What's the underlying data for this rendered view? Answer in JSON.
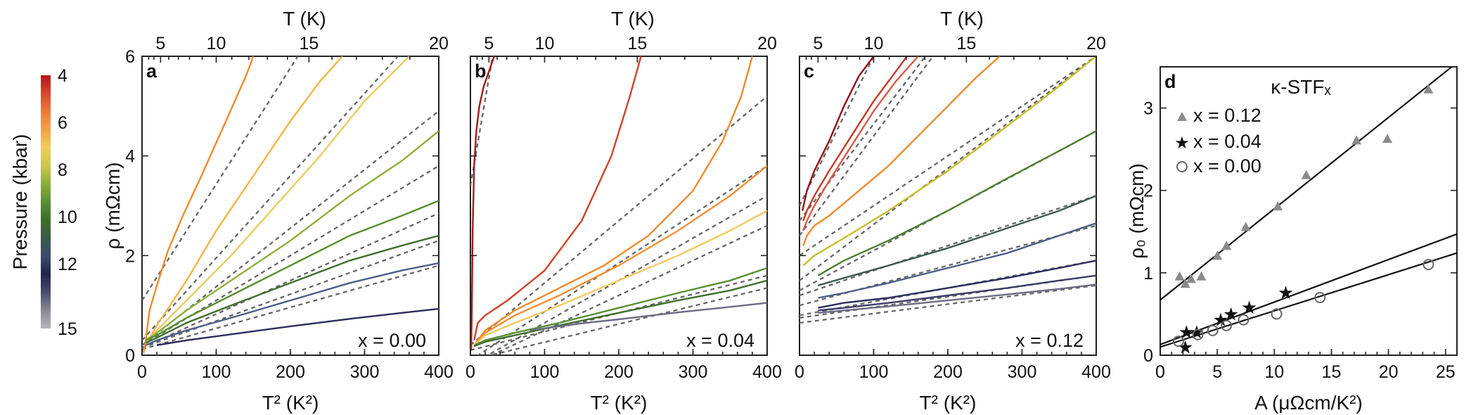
{
  "figure": {
    "colorbar": {
      "label": "Pressure (kbar)",
      "ticks": [
        "4",
        "6",
        "8",
        "10",
        "12",
        "15"
      ],
      "colors": [
        "#b5161c",
        "#d9452a",
        "#ef7b3a",
        "#f1a246",
        "#f3c95c",
        "#c8c84a",
        "#8fae3c",
        "#5b8e33",
        "#3f6e2d",
        "#3a5a48",
        "#3d4a6c",
        "#23244e",
        "#4a4a6a",
        "#8a8a96",
        "#b5b5b8"
      ]
    }
  },
  "chart_data": [
    {
      "id": "a",
      "type": "line",
      "panel_label": "a",
      "annotation": "x = 0.00",
      "xlabel": "T² (K²)",
      "ylabel": "ρ (mΩcm)",
      "top_axis_label": "T (K)",
      "xlim": [
        0,
        400
      ],
      "ylim": [
        0,
        6
      ],
      "x_ticks": [
        "0",
        "100",
        "200",
        "300",
        "400"
      ],
      "y_ticks": [
        "0",
        "2",
        "4",
        "6"
      ],
      "top_ticks": [
        "5",
        "10",
        "15",
        "20"
      ],
      "series": [
        {
          "name": "4.0 kbar",
          "color": "#ef8a2c",
          "x": [
            2,
            5,
            10,
            20,
            35,
            55,
            80,
            110,
            140,
            150
          ],
          "y": [
            0.05,
            0.3,
            0.9,
            1.4,
            2.1,
            2.8,
            3.6,
            4.6,
            5.6,
            6.0
          ]
        },
        {
          "name": "6.5 kbar",
          "color": "#f2b545",
          "x": [
            5,
            20,
            60,
            100,
            150,
            200,
            240,
            270
          ],
          "y": [
            0.2,
            0.6,
            1.5,
            2.5,
            3.6,
            4.7,
            5.5,
            6.0
          ]
        },
        {
          "name": "7.5 kbar",
          "color": "#e9cc60",
          "x": [
            5,
            20,
            60,
            120,
            180,
            240,
            300,
            360
          ],
          "y": [
            0.25,
            0.5,
            1.1,
            2.0,
            3.0,
            4.0,
            5.1,
            6.0
          ]
        },
        {
          "name": "9 kbar",
          "color": "#8fae3c",
          "x": [
            5,
            20,
            60,
            120,
            200,
            280,
            350,
            400
          ],
          "y": [
            0.3,
            0.45,
            0.9,
            1.5,
            2.3,
            3.2,
            3.9,
            4.5
          ]
        },
        {
          "name": "10 kbar",
          "color": "#5b8e33",
          "x": [
            5,
            20,
            60,
            120,
            200,
            280,
            350,
            400
          ],
          "y": [
            0.3,
            0.4,
            0.75,
            1.2,
            1.8,
            2.4,
            2.8,
            3.1
          ]
        },
        {
          "name": "11 kbar",
          "color": "#3f6e2d",
          "x": [
            5,
            20,
            60,
            120,
            200,
            280,
            350,
            400
          ],
          "y": [
            0.25,
            0.35,
            0.65,
            1.0,
            1.45,
            1.9,
            2.2,
            2.4
          ]
        },
        {
          "name": "12 kbar",
          "color": "#4c5e86",
          "x": [
            5,
            20,
            60,
            120,
            200,
            280,
            350,
            400
          ],
          "y": [
            0.2,
            0.3,
            0.5,
            0.75,
            1.1,
            1.45,
            1.7,
            1.85
          ]
        },
        {
          "name": "13.5 kbar",
          "color": "#2b2d5c",
          "x": [
            20,
            60,
            120,
            200,
            280,
            350,
            400
          ],
          "y": [
            0.2,
            0.3,
            0.42,
            0.58,
            0.73,
            0.85,
            0.93
          ]
        }
      ],
      "fits": [
        {
          "x": [
            0,
            210
          ],
          "y": [
            1.1,
            6.0
          ]
        },
        {
          "x": [
            0,
            345
          ],
          "y": [
            0.3,
            6.0
          ]
        },
        {
          "x": [
            0,
            400
          ],
          "y": [
            0.2,
            4.9
          ]
        },
        {
          "x": [
            0,
            400
          ],
          "y": [
            0.2,
            3.8
          ]
        },
        {
          "x": [
            0,
            400
          ],
          "y": [
            0.15,
            2.85
          ]
        },
        {
          "x": [
            0,
            400
          ],
          "y": [
            0.15,
            2.3
          ]
        },
        {
          "x": [
            0,
            400
          ],
          "y": [
            0.12,
            1.8
          ]
        }
      ]
    },
    {
      "id": "b",
      "type": "line",
      "panel_label": "b",
      "annotation": "x = 0.04",
      "xlabel": "T² (K²)",
      "ylabel": "",
      "top_axis_label": "T (K)",
      "xlim": [
        0,
        400
      ],
      "ylim": [
        0,
        6
      ],
      "x_ticks": [
        "0",
        "100",
        "200",
        "300",
        "400"
      ],
      "y_ticks": [],
      "top_ticks": [
        "5",
        "10",
        "15",
        "20"
      ],
      "series": [
        {
          "name": "4.0 kbar",
          "color": "#a31a1a",
          "x": [
            1,
            2,
            3,
            5,
            8,
            12,
            18,
            25,
            32
          ],
          "y": [
            0.1,
            1.0,
            2.5,
            3.8,
            4.5,
            5.0,
            5.4,
            5.7,
            6.0
          ]
        },
        {
          "name": "5 kbar",
          "color": "#d14128",
          "x": [
            5,
            10,
            20,
            50,
            100,
            150,
            190,
            215,
            230
          ],
          "y": [
            0.3,
            0.65,
            0.8,
            1.1,
            1.7,
            2.7,
            4.0,
            5.2,
            6.0
          ]
        },
        {
          "name": "6.5 kbar",
          "color": "#ef8a2c",
          "x": [
            5,
            20,
            60,
            120,
            180,
            240,
            300,
            340,
            365,
            380
          ],
          "y": [
            0.2,
            0.5,
            0.9,
            1.35,
            1.8,
            2.4,
            3.3,
            4.3,
            5.2,
            6.0
          ]
        },
        {
          "name": "7.5 kbar",
          "color": "#f08f36",
          "x": [
            5,
            20,
            60,
            120,
            200,
            280,
            350,
            400
          ],
          "y": [
            0.2,
            0.45,
            0.8,
            1.2,
            1.8,
            2.5,
            3.2,
            3.8
          ]
        },
        {
          "name": "8.5 kbar",
          "color": "#f3c95c",
          "x": [
            5,
            20,
            60,
            120,
            200,
            280,
            350,
            400
          ],
          "y": [
            0.2,
            0.4,
            0.65,
            1.0,
            1.5,
            2.0,
            2.5,
            2.9
          ]
        },
        {
          "name": "10 kbar",
          "color": "#5b8e33",
          "x": [
            5,
            20,
            60,
            120,
            200,
            280,
            350,
            400
          ],
          "y": [
            0.2,
            0.3,
            0.45,
            0.65,
            0.95,
            1.25,
            1.5,
            1.75
          ]
        },
        {
          "name": "11 kbar",
          "color": "#3f6e2d",
          "x": [
            5,
            20,
            60,
            120,
            200,
            280,
            350,
            400
          ],
          "y": [
            0.18,
            0.27,
            0.4,
            0.6,
            0.85,
            1.1,
            1.3,
            1.5
          ]
        },
        {
          "name": "13.5 kbar",
          "color": "#6b6b85",
          "x": [
            80,
            150,
            200,
            280,
            350,
            400
          ],
          "y": [
            0.5,
            0.64,
            0.72,
            0.86,
            0.97,
            1.05
          ]
        }
      ],
      "fits": [
        {
          "x": [
            0,
            30
          ],
          "y": [
            3.4,
            6.0
          ]
        },
        {
          "x": [
            0,
            400
          ],
          "y": [
            0.2,
            5.2
          ]
        },
        {
          "x": [
            0,
            400
          ],
          "y": [
            -0.1,
            3.8
          ]
        },
        {
          "x": [
            0,
            400
          ],
          "y": [
            -0.2,
            3.2
          ]
        },
        {
          "x": [
            0,
            400
          ],
          "y": [
            -0.2,
            2.6
          ]
        },
        {
          "x": [
            0,
            400
          ],
          "y": [
            0.1,
            1.6
          ]
        },
        {
          "x": [
            0,
            400
          ],
          "y": [
            -0.1,
            1.35
          ]
        }
      ]
    },
    {
      "id": "c",
      "type": "line",
      "panel_label": "c",
      "annotation": "x = 0.12",
      "xlabel": "T² (K²)",
      "ylabel": "",
      "top_axis_label": "T (K)",
      "xlim": [
        0,
        400
      ],
      "ylim": [
        0,
        6
      ],
      "x_ticks": [
        "0",
        "100",
        "200",
        "300",
        "400"
      ],
      "y_ticks": [],
      "top_ticks": [
        "5",
        "10",
        "15",
        "20"
      ],
      "series": [
        {
          "name": "4.0 kbar",
          "color": "#8e1118",
          "x": [
            4,
            10,
            20,
            40,
            60,
            80,
            100
          ],
          "y": [
            2.9,
            3.3,
            3.7,
            4.3,
            5.0,
            5.6,
            6.0
          ]
        },
        {
          "name": "5 kbar",
          "color": "#c0392b",
          "x": [
            5,
            10,
            20,
            40,
            70,
            100,
            130,
            145
          ],
          "y": [
            2.7,
            2.9,
            3.2,
            3.7,
            4.4,
            5.1,
            5.7,
            6.0
          ]
        },
        {
          "name": "6 kbar",
          "color": "#d9584a",
          "x": [
            5,
            10,
            20,
            40,
            70,
            100,
            130,
            160
          ],
          "y": [
            2.5,
            2.7,
            3.0,
            3.5,
            4.2,
            4.9,
            5.5,
            6.0
          ]
        },
        {
          "name": "6.5 kbar",
          "color": "#ef8a2c",
          "x": [
            5,
            10,
            20,
            40,
            80,
            120,
            160,
            200,
            240,
            270
          ],
          "y": [
            2.2,
            2.4,
            2.6,
            2.8,
            3.3,
            3.8,
            4.4,
            5.0,
            5.6,
            6.0
          ]
        },
        {
          "name": "8 kbar",
          "color": "#c8c02a",
          "x": [
            5,
            20,
            60,
            120,
            200,
            280,
            350,
            400
          ],
          "y": [
            1.8,
            2.0,
            2.35,
            2.9,
            3.7,
            4.6,
            5.4,
            6.0
          ]
        },
        {
          "name": "9.5 kbar",
          "color": "#4f7c2e",
          "x": [
            25,
            60,
            120,
            200,
            280,
            350,
            400
          ],
          "y": [
            1.6,
            1.9,
            2.3,
            2.9,
            3.55,
            4.1,
            4.5
          ]
        },
        {
          "name": "11 kbar",
          "color": "#3e5a4e",
          "x": [
            25,
            60,
            120,
            200,
            280,
            350,
            400
          ],
          "y": [
            1.4,
            1.55,
            1.8,
            2.15,
            2.55,
            2.9,
            3.2
          ]
        },
        {
          "name": "12 kbar",
          "color": "#4c5e86",
          "x": [
            25,
            60,
            120,
            200,
            280,
            350,
            400
          ],
          "y": [
            1.15,
            1.25,
            1.45,
            1.75,
            2.05,
            2.4,
            2.65
          ]
        },
        {
          "name": "13 kbar",
          "color": "#2b2d5c",
          "x": [
            25,
            60,
            120,
            200,
            280,
            350,
            400
          ],
          "y": [
            0.95,
            1.05,
            1.15,
            1.35,
            1.55,
            1.75,
            1.9
          ]
        },
        {
          "name": "14 kbar",
          "color": "#3b3d68",
          "x": [
            25,
            60,
            120,
            200,
            280,
            350,
            400
          ],
          "y": [
            0.9,
            0.95,
            1.05,
            1.2,
            1.35,
            1.5,
            1.6
          ]
        },
        {
          "name": "15 kbar",
          "color": "#6b6b85",
          "x": [
            25,
            60,
            120,
            200,
            280,
            350,
            400
          ],
          "y": [
            0.85,
            0.9,
            0.98,
            1.1,
            1.22,
            1.33,
            1.42
          ]
        }
      ],
      "fits": [
        {
          "x": [
            0,
            100
          ],
          "y": [
            3.0,
            6.0
          ]
        },
        {
          "x": [
            0,
            170
          ],
          "y": [
            2.7,
            6.0
          ]
        },
        {
          "x": [
            0,
            180
          ],
          "y": [
            2.4,
            6.0
          ]
        },
        {
          "x": [
            0,
            400
          ],
          "y": [
            2.0,
            6.0
          ]
        },
        {
          "x": [
            0,
            400
          ],
          "y": [
            1.5,
            6.0
          ]
        },
        {
          "x": [
            0,
            400
          ],
          "y": [
            1.3,
            4.5
          ]
        },
        {
          "x": [
            0,
            400
          ],
          "y": [
            1.2,
            3.2
          ]
        },
        {
          "x": [
            0,
            400
          ],
          "y": [
            1.0,
            2.6
          ]
        },
        {
          "x": [
            0,
            400
          ],
          "y": [
            0.8,
            1.9
          ]
        },
        {
          "x": [
            0,
            400
          ],
          "y": [
            0.75,
            1.6
          ]
        },
        {
          "x": [
            0,
            400
          ],
          "y": [
            0.65,
            1.4
          ]
        }
      ]
    },
    {
      "id": "d",
      "type": "scatter",
      "panel_label": "d",
      "title": "κ-STFₓ",
      "xlabel": "A (μΩcm/K²)",
      "ylabel": "ρ₀ (mΩcm)",
      "xlim": [
        0,
        26
      ],
      "ylim": [
        0,
        3.5
      ],
      "x_ticks": [
        "0",
        "5",
        "10",
        "15",
        "20",
        "25"
      ],
      "y_ticks": [
        "0",
        "1",
        "2",
        "3"
      ],
      "legend": [
        "x = 0.12",
        "x = 0.04",
        "x = 0.00"
      ],
      "series": [
        {
          "name": "x = 0.12",
          "marker": "triangle",
          "color": "#8a8a8a",
          "x": [
            1.7,
            2.2,
            2.7,
            3.6,
            5.0,
            5.8,
            7.5,
            10.3,
            12.8,
            17.2,
            19.9,
            23.5
          ],
          "y": [
            0.95,
            0.86,
            0.92,
            0.95,
            1.2,
            1.32,
            1.55,
            1.8,
            2.18,
            2.6,
            2.62,
            3.22
          ]
        },
        {
          "name": "x = 0.04",
          "marker": "star",
          "color": "#111111",
          "x": [
            2.2,
            2.3,
            3.2,
            5.3,
            6.2,
            7.8,
            11.0
          ],
          "y": [
            0.1,
            0.28,
            0.28,
            0.43,
            0.5,
            0.58,
            0.76
          ]
        },
        {
          "name": "x = 0.00",
          "marker": "circle",
          "color": "#666666",
          "x": [
            1.6,
            3.3,
            4.6,
            5.8,
            7.3,
            10.2,
            14.0,
            23.5
          ],
          "y": [
            0.17,
            0.25,
            0.3,
            0.36,
            0.43,
            0.5,
            0.7,
            1.1
          ]
        }
      ],
      "fits": [
        {
          "name": "x = 0.12",
          "x": [
            0,
            26
          ],
          "y": [
            0.67,
            3.55
          ]
        },
        {
          "name": "x = 0.04",
          "x": [
            0,
            26
          ],
          "y": [
            0.13,
            1.47
          ]
        },
        {
          "name": "x = 0.00",
          "x": [
            0,
            26
          ],
          "y": [
            0.1,
            1.24
          ]
        }
      ]
    }
  ]
}
